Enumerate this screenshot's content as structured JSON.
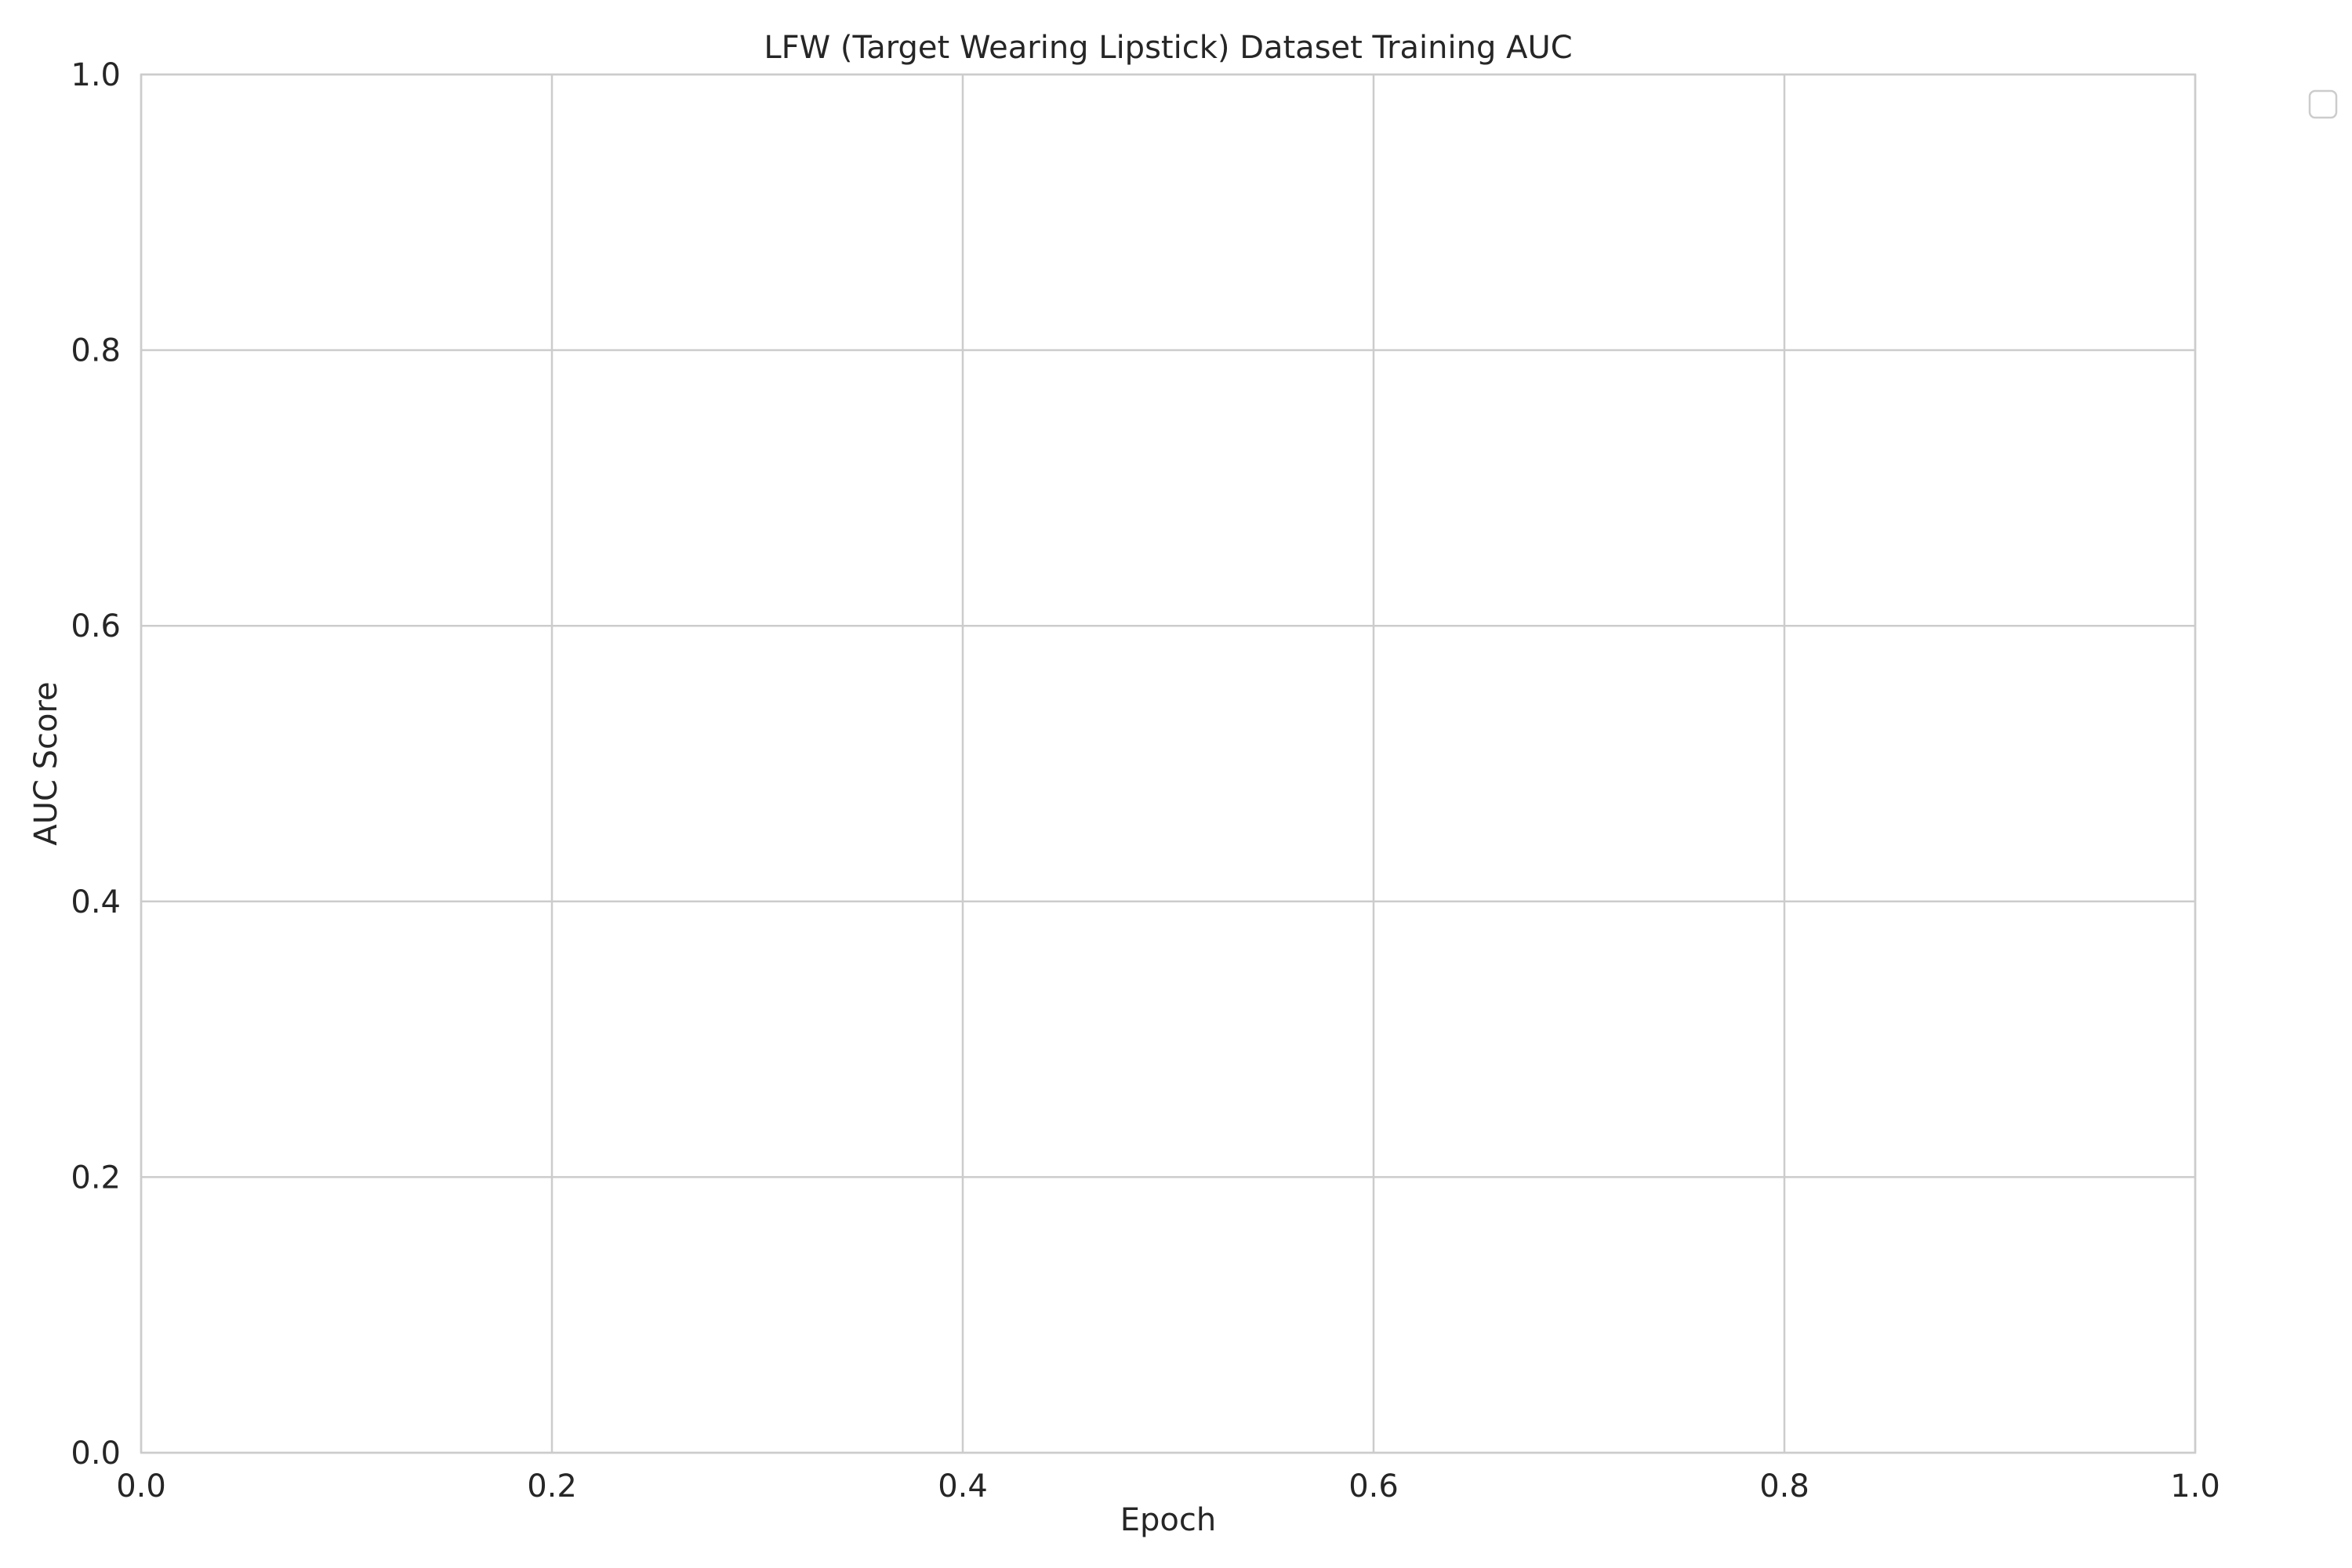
{
  "chart_data": {
    "type": "line",
    "title": "LFW (Target Wearing Lipstick) Dataset Training AUC",
    "xlabel": "Epoch",
    "ylabel": "AUC Score",
    "xlim": [
      0.0,
      1.0
    ],
    "ylim": [
      0.0,
      1.0
    ],
    "xticks": [
      "0.0",
      "0.2",
      "0.4",
      "0.6",
      "0.8",
      "1.0"
    ],
    "yticks": [
      "0.0",
      "0.2",
      "0.4",
      "0.6",
      "0.8",
      "1.0"
    ],
    "series": [],
    "grid": true,
    "legend": {
      "placement": "outside-top-right",
      "entries": []
    }
  }
}
